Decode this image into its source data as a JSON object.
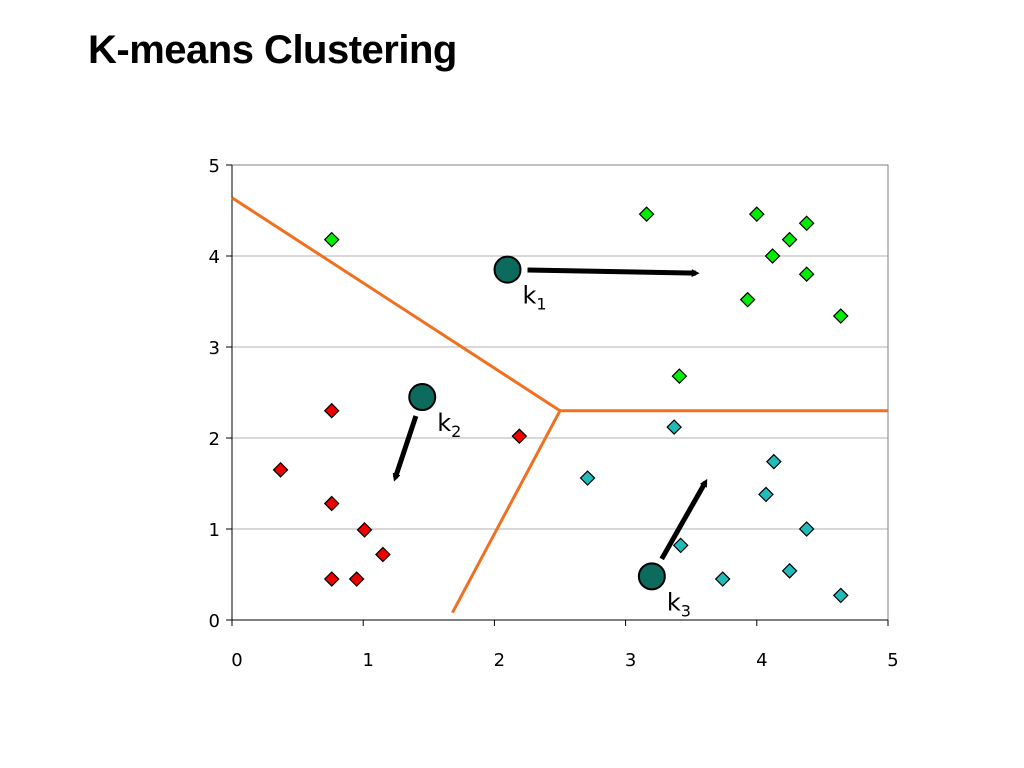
{
  "slide": {
    "title": "K-means Clustering"
  },
  "chart_data": {
    "type": "scatter",
    "xlim": [
      0,
      5
    ],
    "ylim": [
      0,
      5
    ],
    "x_ticks": [
      0,
      1,
      2,
      3,
      4,
      5
    ],
    "y_ticks": [
      0,
      1,
      2,
      3,
      4,
      5
    ],
    "grid": "horizontal",
    "colors": {
      "green": "#00ee00",
      "red": "#ee0000",
      "cyan": "#22bbbb",
      "centroid": "#0d6b5e",
      "boundary": "#f07020",
      "arrow": "#000000"
    },
    "series": [
      {
        "color_key": "green",
        "points": [
          [
            0.76,
            4.18
          ],
          [
            3.16,
            4.46
          ],
          [
            4.0,
            4.46
          ],
          [
            4.38,
            4.36
          ],
          [
            4.25,
            4.18
          ],
          [
            4.12,
            4.0
          ],
          [
            4.38,
            3.8
          ],
          [
            3.93,
            3.52
          ],
          [
            4.64,
            3.34
          ],
          [
            3.41,
            2.68
          ]
        ]
      },
      {
        "color_key": "red",
        "points": [
          [
            0.76,
            2.3
          ],
          [
            2.19,
            2.02
          ],
          [
            0.37,
            1.65
          ],
          [
            0.76,
            1.28
          ],
          [
            1.01,
            0.99
          ],
          [
            1.15,
            0.72
          ],
          [
            0.76,
            0.45
          ],
          [
            0.95,
            0.45
          ]
        ]
      },
      {
        "color_key": "cyan",
        "points": [
          [
            3.37,
            2.12
          ],
          [
            2.71,
            1.56
          ],
          [
            4.13,
            1.74
          ],
          [
            4.07,
            1.38
          ],
          [
            4.38,
            1.0
          ],
          [
            3.42,
            0.82
          ],
          [
            3.74,
            0.45
          ],
          [
            4.25,
            0.54
          ],
          [
            4.64,
            0.27
          ]
        ]
      }
    ],
    "boundaries": [
      [
        [
          0.0,
          4.64
        ],
        [
          2.5,
          2.3
        ]
      ],
      [
        [
          2.5,
          2.3
        ],
        [
          5.0,
          2.3
        ]
      ],
      [
        [
          2.5,
          2.3
        ],
        [
          1.68,
          0.08
        ]
      ]
    ],
    "centroids": [
      {
        "label": "k",
        "sub": "1",
        "x": 2.1,
        "y": 3.85,
        "arrow_to": [
          3.58,
          3.81
        ]
      },
      {
        "label": "k",
        "sub": "2",
        "x": 1.45,
        "y": 2.45,
        "arrow_to": [
          1.23,
          1.5
        ]
      },
      {
        "label": "k",
        "sub": "3",
        "x": 3.2,
        "y": 0.48,
        "arrow_to": [
          3.63,
          1.57
        ]
      }
    ]
  }
}
